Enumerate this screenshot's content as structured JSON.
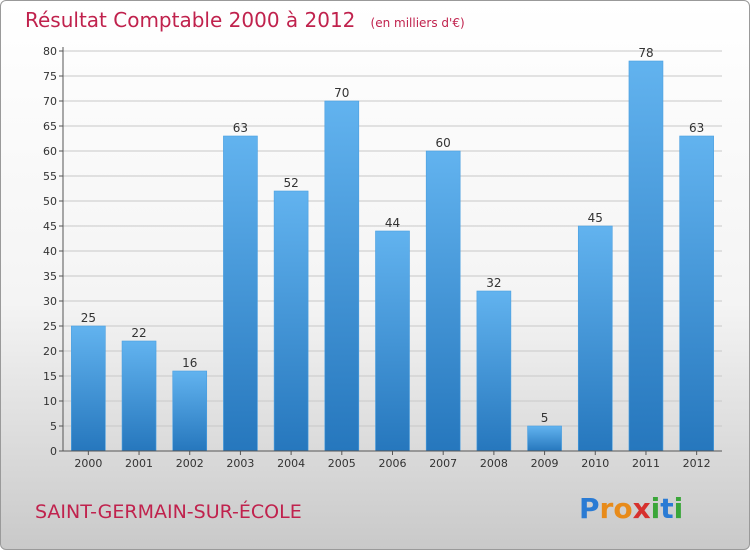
{
  "header": {
    "title": "Résultat Comptable 2000 à 2012",
    "unit": "(en milliers d'€)"
  },
  "footer": {
    "commune": "SAINT-GERMAIN-SUR-ÉCOLE"
  },
  "logo": {
    "letters": [
      "P",
      "r",
      "o",
      "x",
      "i",
      "t",
      "i"
    ],
    "colors": [
      "#2a7bd4",
      "#e88b1a",
      "#e88b1a",
      "#d6312e",
      "#3aa639",
      "#2a7bd4",
      "#3aa639"
    ]
  },
  "colors": {
    "bar_top": "#62b3ef",
    "bar_bottom": "#2677bd",
    "grid": "#c8c8c8",
    "axis": "#555555"
  },
  "chart_data": {
    "type": "bar",
    "title": "Résultat Comptable 2000 à 2012",
    "subtitle": "(en milliers d'€)",
    "categories": [
      "2000",
      "2001",
      "2002",
      "2003",
      "2004",
      "2005",
      "2006",
      "2007",
      "2008",
      "2009",
      "2010",
      "2011",
      "2012"
    ],
    "values": [
      25,
      22,
      16,
      63,
      52,
      70,
      44,
      60,
      32,
      5,
      45,
      78,
      63
    ],
    "data_labels": [
      "25",
      "22",
      "16",
      "63",
      "52",
      "70",
      "44",
      "60",
      "32",
      "5",
      "45",
      "78",
      "63"
    ],
    "y_ticks": [
      "0",
      "5",
      "10",
      "15",
      "20",
      "25",
      "30",
      "35",
      "40",
      "45",
      "50",
      "55",
      "60",
      "65",
      "70",
      "75",
      "80"
    ],
    "ylim": [
      0,
      80
    ],
    "grid": true,
    "legend": "none"
  }
}
